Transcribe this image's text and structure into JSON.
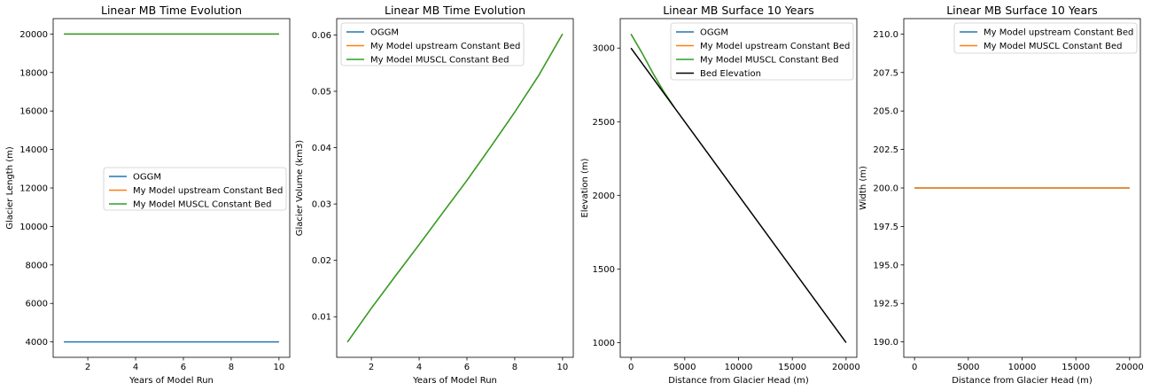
{
  "chart_data": [
    {
      "type": "line",
      "title": "Linear MB Time Evolution",
      "xlabel": "Years of Model Run",
      "ylabel": "Glacier Length (m)",
      "xlim": [
        0.55,
        10.45
      ],
      "ylim": [
        3200,
        20800
      ],
      "xticks": [
        2,
        4,
        6,
        8,
        10
      ],
      "yticks": [
        4000,
        6000,
        8000,
        10000,
        12000,
        14000,
        16000,
        18000,
        20000
      ],
      "legend_loc": "center-right",
      "series": [
        {
          "name": "OGGM",
          "color": "#1f77b4",
          "x": [
            1,
            10
          ],
          "y": [
            4000,
            4000
          ]
        },
        {
          "name": "My Model upstream Constant Bed",
          "color": "#ff7f0e",
          "x": [
            1,
            10
          ],
          "y": [
            20000,
            20000
          ]
        },
        {
          "name": "My Model MUSCL Constant Bed",
          "color": "#2ca02c",
          "x": [
            1,
            10
          ],
          "y": [
            20000,
            20000
          ]
        }
      ]
    },
    {
      "type": "line",
      "title": "Linear MB Time Evolution",
      "xlabel": "Years of Model Run",
      "ylabel": "Glacier Volume (km3)",
      "xlim": [
        0.55,
        10.45
      ],
      "ylim": [
        0.0028,
        0.0629
      ],
      "xticks": [
        2,
        4,
        6,
        8,
        10
      ],
      "yticks": [
        0.01,
        0.02,
        0.03,
        0.04,
        0.05,
        0.06
      ],
      "legend_loc": "upper-left",
      "series": [
        {
          "name": "OGGM",
          "color": "#1f77b4",
          "x": [],
          "y": []
        },
        {
          "name": "My Model upstream Constant Bed",
          "color": "#ff7f0e",
          "x": [
            1,
            2,
            3,
            4,
            5,
            6,
            7,
            8,
            9,
            10
          ],
          "y": [
            0.0055,
            0.0115,
            0.0172,
            0.0228,
            0.0285,
            0.0342,
            0.0402,
            0.0463,
            0.0528,
            0.0602
          ]
        },
        {
          "name": "My Model MUSCL Constant Bed",
          "color": "#2ca02c",
          "x": [
            1,
            2,
            3,
            4,
            5,
            6,
            7,
            8,
            9,
            10
          ],
          "y": [
            0.0055,
            0.0115,
            0.0172,
            0.0228,
            0.0285,
            0.0342,
            0.0402,
            0.0463,
            0.0528,
            0.0602
          ]
        }
      ]
    },
    {
      "type": "line",
      "title": "Linear MB Surface 10 Years",
      "xlabel": "Distance from Glacier Head (m)",
      "ylabel": "Elevation (m)",
      "xlim": [
        -1000,
        21000
      ],
      "ylim": [
        900,
        3200
      ],
      "xticks": [
        0,
        5000,
        10000,
        15000,
        20000
      ],
      "yticks": [
        1000,
        1500,
        2000,
        2500,
        3000
      ],
      "legend_loc": "upper-right",
      "series": [
        {
          "name": "OGGM",
          "color": "#1f77b4",
          "x": [],
          "y": []
        },
        {
          "name": "My Model upstream Constant Bed",
          "color": "#ff7f0e",
          "x": [
            0,
            1000,
            2000,
            3000,
            4000
          ],
          "y": [
            3095,
            2970,
            2835,
            2710,
            2600
          ]
        },
        {
          "name": "My Model MUSCL Constant Bed",
          "color": "#2ca02c",
          "x": [
            0,
            1000,
            2000,
            3000,
            4000
          ],
          "y": [
            3095,
            2970,
            2835,
            2710,
            2600
          ]
        },
        {
          "name": "Bed Elevation",
          "color": "#000000",
          "x": [
            0,
            20000
          ],
          "y": [
            3000,
            1000
          ]
        }
      ]
    },
    {
      "type": "line",
      "title": "Linear MB Surface 10 Years",
      "xlabel": "Distance from Glacier Head (m)",
      "ylabel": "Width (m)",
      "xlim": [
        -1000,
        21000
      ],
      "ylim": [
        189,
        211
      ],
      "xticks": [
        0,
        5000,
        10000,
        15000,
        20000
      ],
      "yticks": [
        190.0,
        192.5,
        195.0,
        197.5,
        200.0,
        202.5,
        205.0,
        207.5,
        210.0
      ],
      "ytick_labels": [
        "190.0",
        "192.5",
        "195.0",
        "197.5",
        "200.0",
        "202.5",
        "205.0",
        "207.5",
        "210.0"
      ],
      "legend_loc": "upper-right",
      "series": [
        {
          "name": "My Model upstream Constant Bed",
          "color": "#1f77b4",
          "x": [
            0,
            20000
          ],
          "y": [
            200,
            200
          ]
        },
        {
          "name": "My Model MUSCL Constant Bed",
          "color": "#ff7f0e",
          "x": [
            0,
            20000
          ],
          "y": [
            200,
            200
          ]
        }
      ]
    }
  ]
}
